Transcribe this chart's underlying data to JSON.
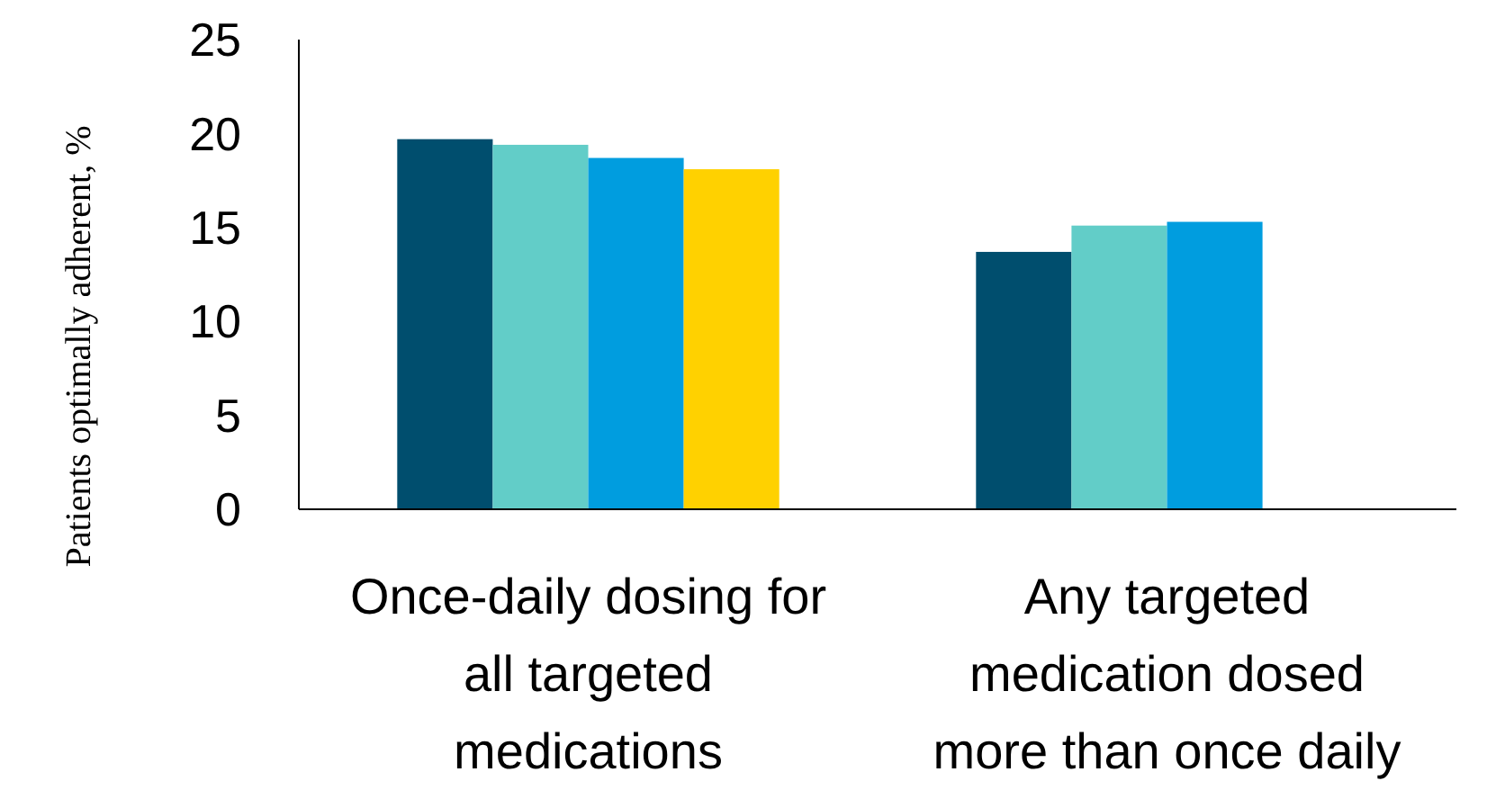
{
  "chart_data": {
    "type": "bar",
    "ylabel": "Patients optimally adherent, %",
    "categories": [
      "Once-daily dosing for all targeted medications",
      "Any targeted medication dosed more than once daily"
    ],
    "series": [
      {
        "color": "#004e6e",
        "values": [
          19.7,
          13.7
        ]
      },
      {
        "color": "#62cdc8",
        "values": [
          19.4,
          15.1
        ]
      },
      {
        "color": "#009ddf",
        "values": [
          18.7,
          15.3
        ]
      },
      {
        "color": "#ffd100",
        "values": [
          18.1,
          null
        ]
      }
    ],
    "ylim": [
      0,
      25
    ],
    "yticks": [
      0,
      5,
      10,
      15,
      20,
      25
    ],
    "grid": false
  }
}
